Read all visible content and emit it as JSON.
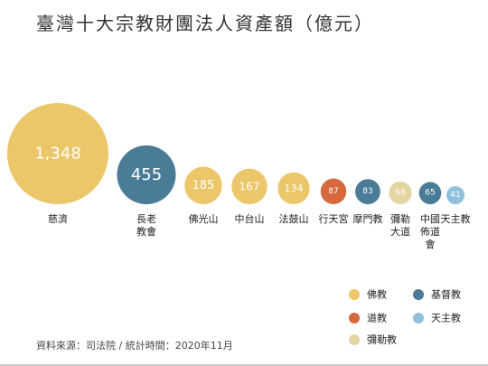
{
  "title": "臺灣十大宗教財團法人資產額（億元）",
  "source": "資料來源：司法院 / 統計時間：2020年11月",
  "chart_data": {
    "type": "bubble",
    "title": "臺灣十大宗教財團法人資產額（億元）",
    "unit": "億元",
    "items": [
      {
        "name": "慈濟",
        "value": 1348,
        "value_label": "1,348",
        "category": "佛教"
      },
      {
        "name": "長老教會",
        "value": 455,
        "value_label": "455",
        "category": "基督教"
      },
      {
        "name": "佛光山",
        "value": 185,
        "value_label": "185",
        "category": "佛教"
      },
      {
        "name": "中台山",
        "value": 167,
        "value_label": "167",
        "category": "佛教"
      },
      {
        "name": "法鼓山",
        "value": 134,
        "value_label": "134",
        "category": "佛教"
      },
      {
        "name": "行天宮",
        "value": 87,
        "value_label": "87",
        "category": "道教"
      },
      {
        "name": "摩門教",
        "value": 83,
        "value_label": "83",
        "category": "基督教"
      },
      {
        "name": "彌勒大道",
        "value": 68,
        "value_label": "68",
        "category": "彌勒教"
      },
      {
        "name": "中國佈道會",
        "value": 65,
        "value_label": "65",
        "category": "基督教"
      },
      {
        "name": "天主教",
        "value": 41,
        "value_label": "41",
        "category": "天主教"
      }
    ],
    "legend": [
      {
        "label": "佛教",
        "color": "#ebc76a"
      },
      {
        "label": "基督教",
        "color": "#4a7c97"
      },
      {
        "label": "道教",
        "color": "#d7683e"
      },
      {
        "label": "天主教",
        "color": "#8fc1dc"
      },
      {
        "label": "彌勒教",
        "color": "#e3d6a3"
      }
    ],
    "legend_position": "bottom-right"
  }
}
